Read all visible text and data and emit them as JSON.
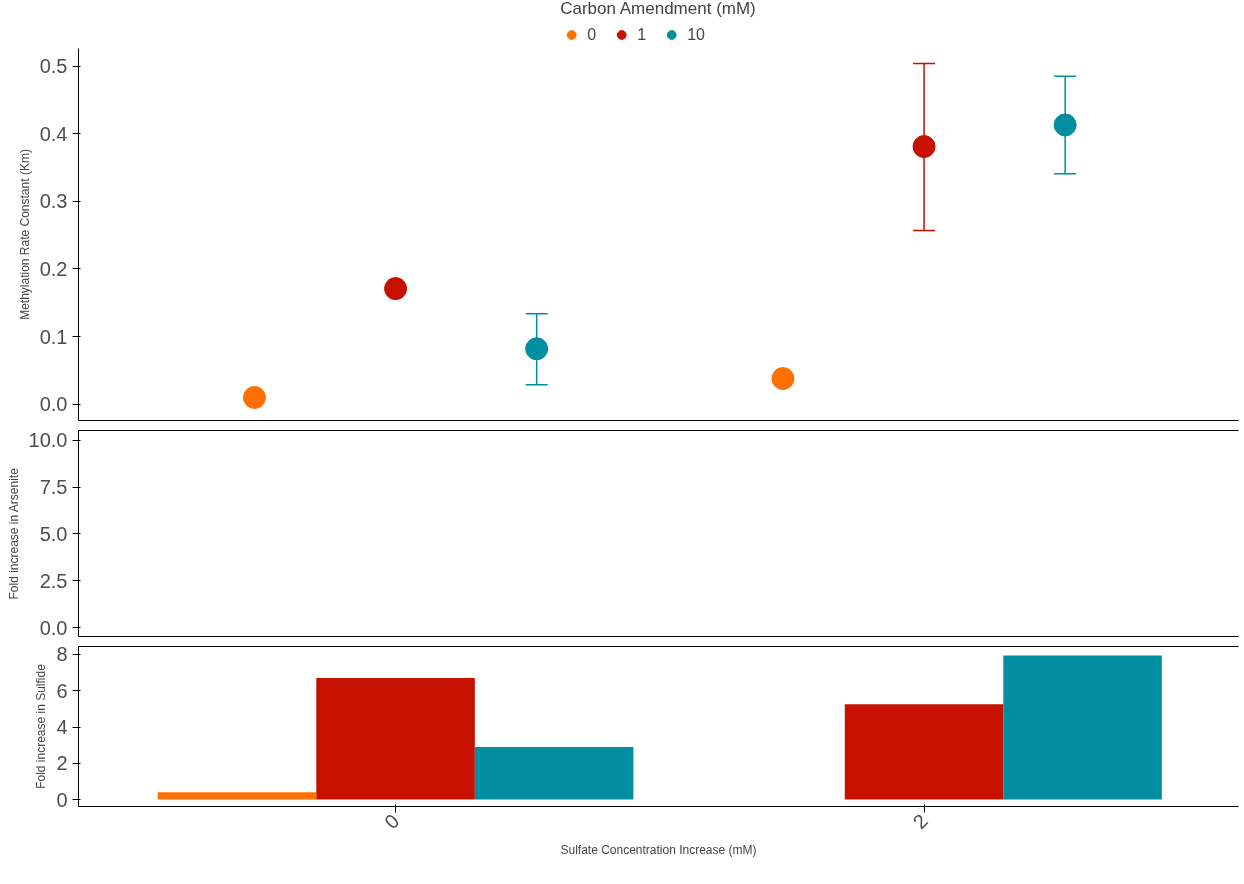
{
  "chart_data": [
    {
      "type": "scatter",
      "ylabel": "Methylation Rate Constant (Km)",
      "legend_title": "Carbon Amendment (mM)",
      "legend": "top",
      "marker": "circle",
      "grid": false,
      "tick_labels": "y",
      "categories": [
        "0",
        "2"
      ],
      "ylim": [
        -0.024,
        0.526
      ],
      "yticks": [
        {
          "value": 0,
          "label": "0.0"
        },
        0.1,
        0.2,
        0.3,
        0.4,
        0.5
      ],
      "series": [
        {
          "name": "0",
          "color": "#ff7000",
          "values": [
            0.01,
            0.038
          ]
        },
        {
          "name": "1",
          "color": "#c61100",
          "values": [
            0.171,
            0.381
          ],
          "errors": [
            null,
            [
              0.257,
              0.504
            ]
          ]
        },
        {
          "name": "10",
          "color": "#018ea0",
          "values": [
            0.082,
            0.413
          ],
          "errors": [
            [
              0.029,
              0.134
            ],
            [
              0.341,
              0.485
            ]
          ]
        }
      ]
    },
    {
      "type": "bar",
      "ylabel": "Fold increase in Arsenite",
      "grid": false,
      "tick_labels": "y",
      "categories": [
        "0",
        "2"
      ],
      "ylim": [
        -0.48,
        10.53
      ],
      "yticks": [
        {
          "value": 0,
          "label": "0.0"
        },
        2.5,
        {
          "value": 5,
          "label": "5.0"
        },
        7.5,
        {
          "value": 10,
          "label": "10.0"
        }
      ],
      "values": [
        null,
        null
      ]
    },
    {
      "type": "bar",
      "ylabel": "Fold increase in Sulfide",
      "xlabel": "Sulfate Concentration Increase (mM)",
      "grid": false,
      "categories": [
        "0",
        "2"
      ],
      "ylim": [
        -0.38,
        8.44
      ],
      "yticks": [
        0,
        2,
        4,
        6,
        8
      ],
      "series": [
        {
          "color": "#ff7000",
          "values": [
            0.4,
            null
          ]
        },
        {
          "color": "#c61100",
          "values": [
            6.7,
            5.25
          ]
        },
        {
          "color": "#018ea0",
          "values": [
            2.9,
            7.95
          ]
        }
      ]
    }
  ]
}
